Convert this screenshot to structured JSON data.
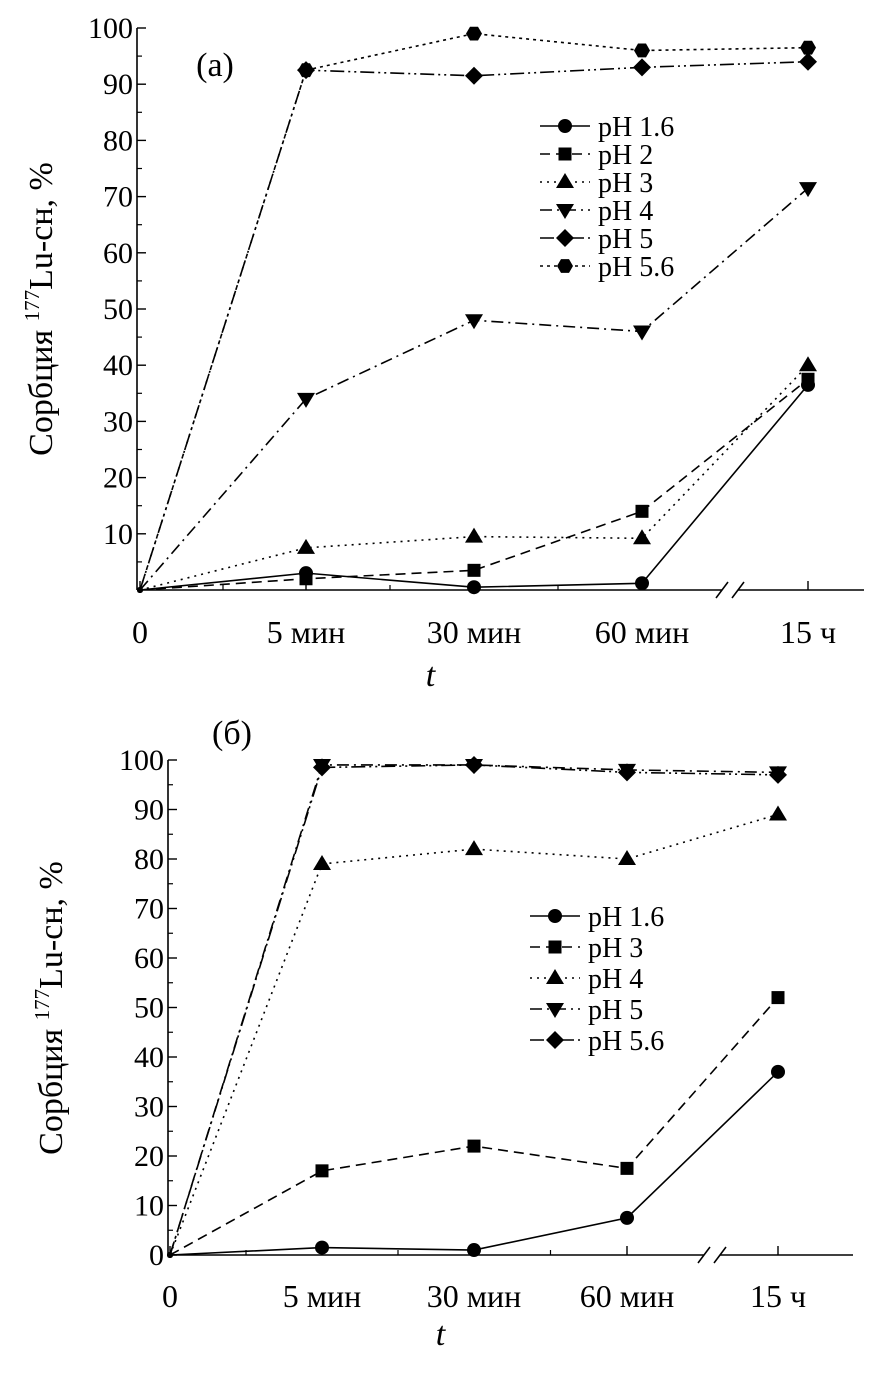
{
  "chart_data": [
    {
      "type": "line",
      "panel_label": "(a)",
      "xlabel": "t",
      "ylabel_parts": [
        "Сорбция ",
        "177",
        "Lu-сн, %"
      ],
      "categories": [
        "0",
        "5 мин",
        "30 мин",
        "60 мин",
        "15 ч"
      ],
      "ylim": [
        0,
        100
      ],
      "yticks": [
        "10",
        "20",
        "30",
        "40",
        "50",
        "60",
        "70",
        "80",
        "90",
        "100"
      ],
      "axis_break": "//",
      "legend_position": "right-middle",
      "series": [
        {
          "name": "pH 1.6",
          "marker": "circle",
          "line": "solid",
          "values": [
            0,
            3,
            0.5,
            1.2,
            36.5
          ]
        },
        {
          "name": "pH 2",
          "marker": "square",
          "line": "dash",
          "values": [
            0,
            2,
            3.5,
            14,
            37.5
          ]
        },
        {
          "name": "pH 3",
          "marker": "triangle-up",
          "line": "dot",
          "values": [
            0,
            7.5,
            9.5,
            9.2,
            40
          ]
        },
        {
          "name": "pH 4",
          "marker": "triangle-down",
          "line": "dashdot",
          "values": [
            0,
            34,
            48,
            46,
            71.5
          ]
        },
        {
          "name": "pH 5",
          "marker": "diamond",
          "line": "dashdotdot",
          "values": [
            0,
            92.5,
            91.5,
            93,
            94
          ]
        },
        {
          "name": "pH 5.6",
          "marker": "hexagon",
          "line": "shortdot",
          "values": [
            0,
            92.5,
            99,
            96,
            96.5
          ]
        }
      ]
    },
    {
      "type": "line",
      "panel_label": "(б)",
      "xlabel": "t",
      "ylabel_parts": [
        "Сорбция ",
        "177",
        "Lu-сн, %"
      ],
      "categories": [
        "0",
        "5 мин",
        "30 мин",
        "60 мин",
        "15 ч"
      ],
      "ylim": [
        0,
        100
      ],
      "yticks": [
        "0",
        "10",
        "20",
        "30",
        "40",
        "50",
        "60",
        "70",
        "80",
        "90",
        "100"
      ],
      "axis_break": "//",
      "legend_position": "right-middle",
      "series": [
        {
          "name": "pH 1.6",
          "marker": "circle",
          "line": "solid",
          "values": [
            0,
            1.5,
            1,
            7.5,
            37
          ]
        },
        {
          "name": "pH 3",
          "marker": "square",
          "line": "dash",
          "values": [
            0,
            17,
            22,
            17.5,
            52
          ]
        },
        {
          "name": "pH 4",
          "marker": "triangle-up",
          "line": "dot",
          "values": [
            0,
            79,
            82,
            80,
            89
          ]
        },
        {
          "name": "pH 5",
          "marker": "triangle-down",
          "line": "dashdot",
          "values": [
            0,
            99,
            99,
            98,
            97.5
          ]
        },
        {
          "name": "pH 5.6",
          "marker": "diamond",
          "line": "dashdotdot",
          "values": [
            0,
            98.5,
            99,
            97.5,
            97
          ]
        }
      ]
    }
  ]
}
